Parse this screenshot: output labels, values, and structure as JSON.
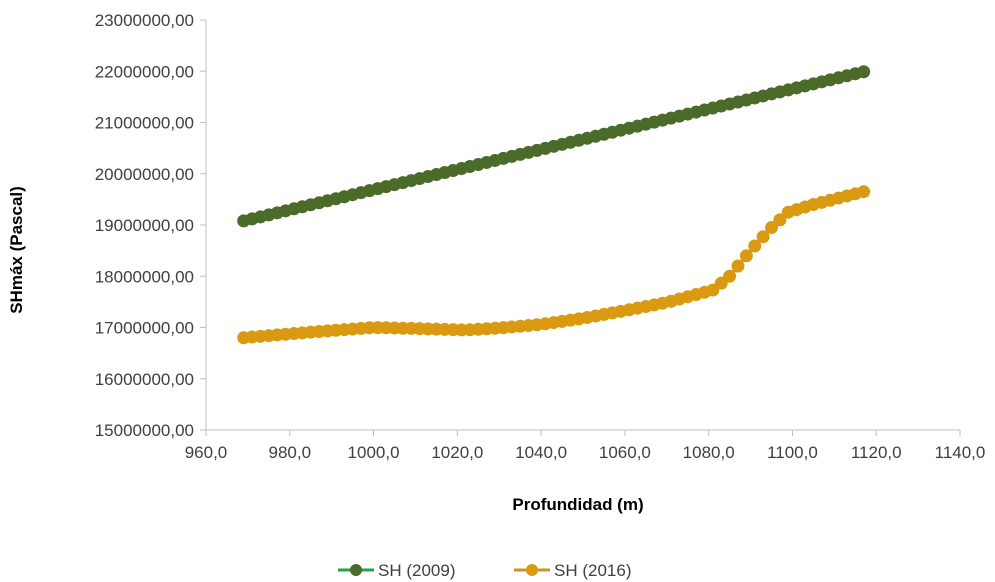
{
  "chart_data": {
    "type": "line",
    "title": "",
    "xlabel": "Profundidad (m)",
    "ylabel": "SHmáx (Pascal)",
    "xlim": [
      960,
      1140
    ],
    "ylim": [
      15000000,
      23000000
    ],
    "x_ticks": [
      "960,0",
      "980,0",
      "1000,0",
      "1020,0",
      "1040,0",
      "1060,0",
      "1080,0",
      "1100,0",
      "1120,0",
      "1140,0"
    ],
    "y_ticks": [
      "15000000,00",
      "16000000,00",
      "17000000,00",
      "18000000,00",
      "19000000,00",
      "20000000,00",
      "21000000,00",
      "22000000,00",
      "23000000,00"
    ],
    "legend_position": "bottom",
    "grid": false,
    "marker": "circle",
    "x_range": {
      "start": 969,
      "end": 1117,
      "step": 2
    },
    "series": [
      {
        "name": "SH (2009)",
        "color": "#4a6b2a",
        "line_color": "#22a34a",
        "points": [
          [
            969,
            19080000
          ],
          [
            1117,
            21990000
          ]
        ]
      },
      {
        "name": "SH (2016)",
        "color": "#d99a12",
        "line_color": "#c8961c",
        "points": [
          [
            969,
            16800000
          ],
          [
            985,
            16910000
          ],
          [
            1000,
            17000000
          ],
          [
            1010,
            16980000
          ],
          [
            1022,
            16950000
          ],
          [
            1030,
            16990000
          ],
          [
            1040,
            17060000
          ],
          [
            1050,
            17180000
          ],
          [
            1060,
            17330000
          ],
          [
            1070,
            17490000
          ],
          [
            1081,
            17730000
          ],
          [
            1085,
            18000000
          ],
          [
            1090,
            18500000
          ],
          [
            1095,
            18950000
          ],
          [
            1099,
            19250000
          ],
          [
            1105,
            19400000
          ],
          [
            1117,
            19650000
          ]
        ]
      }
    ]
  }
}
